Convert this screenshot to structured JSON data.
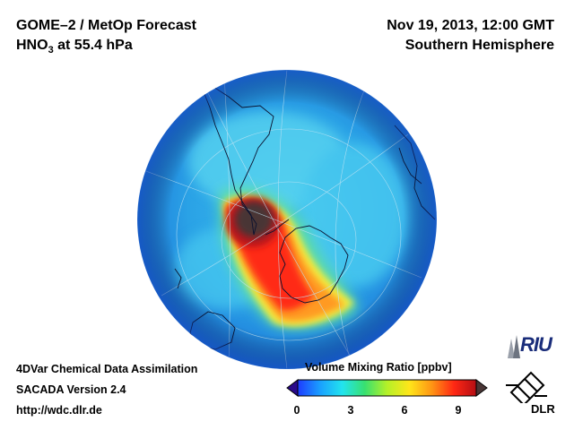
{
  "header": {
    "instrument": "GOME–2 / MetOp Forecast",
    "species_prefix": "HNO",
    "species_sub": "3",
    "level": " at 55.4 hPa",
    "datetime": "Nov 19, 2013, 12:00 GMT",
    "region": "Southern Hemisphere"
  },
  "footer": {
    "line1": "4DVar Chemical Data Assimilation",
    "line2": "SACADA Version 2.4",
    "line3": "http://wdc.dlr.de"
  },
  "colorbar": {
    "title": "Volume Mixing Ratio [ppbv]",
    "ticks": [
      "0",
      "3",
      "6",
      "9"
    ],
    "range": [
      0,
      10
    ],
    "colors": [
      "#2a0a8a",
      "#1e3cff",
      "#1aa0ff",
      "#22e4ee",
      "#38e070",
      "#b4f028",
      "#ffe61a",
      "#ff9614",
      "#ff2814",
      "#b40e14",
      "#4a3636"
    ]
  },
  "logos": {
    "riu": "RIU",
    "dlr": "DLR"
  },
  "map": {
    "projection": "orthographic south-polar",
    "colors": {
      "ocean_base": "#3ab0e6",
      "coast": "#000000",
      "grid": "#b9dcef"
    }
  }
}
